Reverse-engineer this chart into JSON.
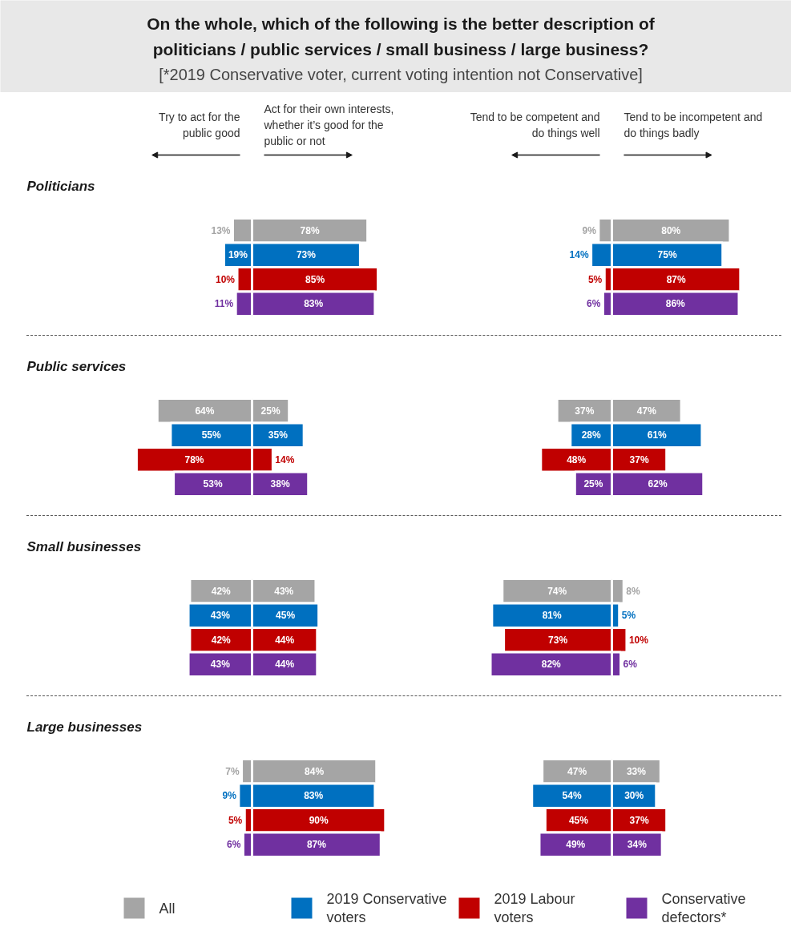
{
  "chart_data": [
    {
      "type": "other",
      "title": "On the whole, which of the following is the better description of\npoliticians / public services / small business / large business?",
      "subtitle": "[*2019 Conservative voter, current voting intention not Conservative]"
    },
    {
      "type": "bar",
      "orientation": "horizontal",
      "title": "Politicians",
      "annotations": [
        "Try to act for the\npublic good"
      ],
      "categories": [
        null
      ],
      "xlim": [
        170,
        0
      ],
      "tick_labels": false,
      "series": [
        {
          "color": "#a5a5a5",
          "values": [
            13
          ],
          "value_labels": [
            "13%"
          ]
        },
        {
          "color": "#0070c0",
          "values": [
            19
          ],
          "value_labels": [
            "19%"
          ]
        },
        {
          "color": "#c00000",
          "values": [
            10
          ],
          "value_labels": [
            "10%"
          ]
        },
        {
          "color": "#7030a0",
          "values": [
            11
          ],
          "value_labels": [
            "11%"
          ]
        }
      ]
    },
    {
      "type": "bar",
      "orientation": "horizontal",
      "annotations": [
        "Act for their own interests,\nwhether it’s good for the\npublic or not"
      ],
      "categories": [
        null
      ],
      "xlim": [
        0,
        125
      ],
      "tick_labels": false,
      "series": [
        {
          "color": "#a5a5a5",
          "values": [
            78
          ],
          "value_labels": [
            "78%"
          ]
        },
        {
          "color": "#0070c0",
          "values": [
            73
          ],
          "value_labels": [
            "73%"
          ]
        },
        {
          "color": "#c00000",
          "values": [
            85
          ],
          "value_labels": [
            "85%"
          ]
        },
        {
          "color": "#7030a0",
          "values": [
            83
          ],
          "value_labels": [
            "83%"
          ]
        }
      ]
    },
    {
      "type": "bar",
      "orientation": "horizontal",
      "annotations": [
        "Tend to be competent and\ndo things well"
      ],
      "categories": [
        null
      ],
      "xlim": [
        118,
        0
      ],
      "tick_labels": false,
      "series": [
        {
          "color": "#a5a5a5",
          "values": [
            9
          ],
          "value_labels": [
            "9%"
          ]
        },
        {
          "color": "#0070c0",
          "values": [
            14
          ],
          "value_labels": [
            "14%"
          ]
        },
        {
          "color": "#c00000",
          "values": [
            5
          ],
          "value_labels": [
            "5%"
          ]
        },
        {
          "color": "#7030a0",
          "values": [
            6
          ],
          "value_labels": [
            "6%"
          ]
        }
      ]
    },
    {
      "type": "bar",
      "orientation": "horizontal",
      "annotations": [
        "Tend to be incompetent and\ndo things badly"
      ],
      "categories": [
        null
      ],
      "xlim": [
        0,
        121
      ],
      "tick_labels": false,
      "series": [
        {
          "color": "#a5a5a5",
          "values": [
            80
          ],
          "value_labels": [
            "80%"
          ]
        },
        {
          "color": "#0070c0",
          "values": [
            75
          ],
          "value_labels": [
            "75%"
          ]
        },
        {
          "color": "#c00000",
          "values": [
            87
          ],
          "value_labels": [
            "87%"
          ]
        },
        {
          "color": "#7030a0",
          "values": [
            86
          ],
          "value_labels": [
            "86%"
          ]
        }
      ]
    },
    {
      "type": "bar",
      "orientation": "horizontal",
      "title": "Public services",
      "categories": [
        null
      ],
      "xlim": [
        170,
        0
      ],
      "tick_labels": false,
      "series": [
        {
          "color": "#a5a5a5",
          "values": [
            64
          ],
          "value_labels": [
            "64%"
          ]
        },
        {
          "color": "#0070c0",
          "values": [
            55
          ],
          "value_labels": [
            "55%"
          ]
        },
        {
          "color": "#c00000",
          "values": [
            78
          ],
          "value_labels": [
            "78%"
          ]
        },
        {
          "color": "#7030a0",
          "values": [
            53
          ],
          "value_labels": [
            "53%"
          ]
        }
      ]
    },
    {
      "type": "bar",
      "orientation": "horizontal",
      "categories": [
        null
      ],
      "xlim": [
        0,
        125
      ],
      "tick_labels": false,
      "series": [
        {
          "color": "#a5a5a5",
          "values": [
            25
          ],
          "value_labels": [
            "25%"
          ]
        },
        {
          "color": "#0070c0",
          "values": [
            35
          ],
          "value_labels": [
            "35%"
          ]
        },
        {
          "color": "#c00000",
          "values": [
            14
          ],
          "value_labels": [
            "14%"
          ]
        },
        {
          "color": "#7030a0",
          "values": [
            38
          ],
          "value_labels": [
            "38%"
          ]
        }
      ]
    },
    {
      "type": "bar",
      "orientation": "horizontal",
      "categories": [
        null
      ],
      "xlim": [
        118,
        0
      ],
      "tick_labels": false,
      "series": [
        {
          "color": "#a5a5a5",
          "values": [
            37
          ],
          "value_labels": [
            "37%"
          ]
        },
        {
          "color": "#0070c0",
          "values": [
            28
          ],
          "value_labels": [
            "28%"
          ]
        },
        {
          "color": "#c00000",
          "values": [
            48
          ],
          "value_labels": [
            "48%"
          ]
        },
        {
          "color": "#7030a0",
          "values": [
            25
          ],
          "value_labels": [
            "25%"
          ]
        }
      ]
    },
    {
      "type": "bar",
      "orientation": "horizontal",
      "categories": [
        null
      ],
      "xlim": [
        0,
        121
      ],
      "tick_labels": false,
      "series": [
        {
          "color": "#a5a5a5",
          "values": [
            47
          ],
          "value_labels": [
            "47%"
          ]
        },
        {
          "color": "#0070c0",
          "values": [
            61
          ],
          "value_labels": [
            "61%"
          ]
        },
        {
          "color": "#c00000",
          "values": [
            37
          ],
          "value_labels": [
            "37%"
          ]
        },
        {
          "color": "#7030a0",
          "values": [
            62
          ],
          "value_labels": [
            "62%"
          ]
        }
      ]
    },
    {
      "type": "bar",
      "orientation": "horizontal",
      "title": "Small businesses",
      "categories": [
        null
      ],
      "xlim": [
        170,
        0
      ],
      "tick_labels": false,
      "series": [
        {
          "color": "#a5a5a5",
          "values": [
            42
          ],
          "value_labels": [
            "42%"
          ]
        },
        {
          "color": "#0070c0",
          "values": [
            43
          ],
          "value_labels": [
            "43%"
          ]
        },
        {
          "color": "#c00000",
          "values": [
            42
          ],
          "value_labels": [
            "42%"
          ]
        },
        {
          "color": "#7030a0",
          "values": [
            43
          ],
          "value_labels": [
            "43%"
          ]
        }
      ]
    },
    {
      "type": "bar",
      "orientation": "horizontal",
      "categories": [
        null
      ],
      "xlim": [
        0,
        125
      ],
      "tick_labels": false,
      "series": [
        {
          "color": "#a5a5a5",
          "values": [
            43
          ],
          "value_labels": [
            "43%"
          ]
        },
        {
          "color": "#0070c0",
          "values": [
            45
          ],
          "value_labels": [
            "45%"
          ]
        },
        {
          "color": "#c00000",
          "values": [
            44
          ],
          "value_labels": [
            "44%"
          ]
        },
        {
          "color": "#7030a0",
          "values": [
            44
          ],
          "value_labels": [
            "44%"
          ]
        }
      ]
    },
    {
      "type": "bar",
      "orientation": "horizontal",
      "categories": [
        null
      ],
      "xlim": [
        118,
        0
      ],
      "tick_labels": false,
      "series": [
        {
          "color": "#a5a5a5",
          "values": [
            74
          ],
          "value_labels": [
            "74%"
          ]
        },
        {
          "color": "#0070c0",
          "values": [
            81
          ],
          "value_labels": [
            "81%"
          ]
        },
        {
          "color": "#c00000",
          "values": [
            73
          ],
          "value_labels": [
            "73%"
          ]
        },
        {
          "color": "#7030a0",
          "values": [
            82
          ],
          "value_labels": [
            "82%"
          ]
        }
      ]
    },
    {
      "type": "bar",
      "orientation": "horizontal",
      "categories": [
        null
      ],
      "xlim": [
        0,
        121
      ],
      "tick_labels": false,
      "series": [
        {
          "color": "#a5a5a5",
          "values": [
            8
          ],
          "value_labels": [
            "8%"
          ]
        },
        {
          "color": "#0070c0",
          "values": [
            5
          ],
          "value_labels": [
            "5%"
          ]
        },
        {
          "color": "#c00000",
          "values": [
            10
          ],
          "value_labels": [
            "10%"
          ]
        },
        {
          "color": "#7030a0",
          "values": [
            6
          ],
          "value_labels": [
            "6%"
          ]
        }
      ]
    },
    {
      "type": "bar",
      "orientation": "horizontal",
      "title": "Large businesses",
      "legend": "bottom",
      "categories": [
        null
      ],
      "xlim": [
        170,
        0
      ],
      "tick_labels": false,
      "series": [
        {
          "name": "All",
          "color": "#a5a5a5",
          "values": [
            7
          ],
          "value_labels": [
            "7%"
          ]
        },
        {
          "name": "2019 Conservative voters",
          "color": "#0070c0",
          "values": [
            9
          ],
          "value_labels": [
            "9%"
          ]
        },
        {
          "name": "2019 Labour voters",
          "color": "#c00000",
          "values": [
            5
          ],
          "value_labels": [
            "5%"
          ]
        },
        {
          "name": "Conservative defectors*",
          "color": "#7030a0",
          "values": [
            6
          ],
          "value_labels": [
            "6%"
          ]
        }
      ]
    },
    {
      "type": "bar",
      "orientation": "horizontal",
      "categories": [
        null
      ],
      "xlim": [
        0,
        125
      ],
      "tick_labels": false,
      "series": [
        {
          "color": "#a5a5a5",
          "values": [
            84
          ],
          "value_labels": [
            "84%"
          ]
        },
        {
          "color": "#0070c0",
          "values": [
            83
          ],
          "value_labels": [
            "83%"
          ]
        },
        {
          "color": "#c00000",
          "values": [
            90
          ],
          "value_labels": [
            "90%"
          ]
        },
        {
          "color": "#7030a0",
          "values": [
            87
          ],
          "value_labels": [
            "87%"
          ]
        }
      ]
    },
    {
      "type": "bar",
      "orientation": "horizontal",
      "categories": [
        null
      ],
      "xlim": [
        118,
        0
      ],
      "tick_labels": false,
      "series": [
        {
          "color": "#a5a5a5",
          "values": [
            47
          ],
          "value_labels": [
            "47%"
          ]
        },
        {
          "color": "#0070c0",
          "values": [
            54
          ],
          "value_labels": [
            "54%"
          ]
        },
        {
          "color": "#c00000",
          "values": [
            45
          ],
          "value_labels": [
            "45%"
          ]
        },
        {
          "color": "#7030a0",
          "values": [
            49
          ],
          "value_labels": [
            "49%"
          ]
        }
      ]
    },
    {
      "type": "bar",
      "orientation": "horizontal",
      "categories": [
        null
      ],
      "xlim": [
        0,
        121
      ],
      "tick_labels": false,
      "series": [
        {
          "color": "#a5a5a5",
          "values": [
            33
          ],
          "value_labels": [
            "33%"
          ]
        },
        {
          "color": "#0070c0",
          "values": [
            30
          ],
          "value_labels": [
            "30%"
          ]
        },
        {
          "color": "#c00000",
          "values": [
            37
          ],
          "value_labels": [
            "37%"
          ]
        },
        {
          "color": "#7030a0",
          "values": [
            34
          ],
          "value_labels": [
            "34%"
          ]
        }
      ]
    }
  ]
}
